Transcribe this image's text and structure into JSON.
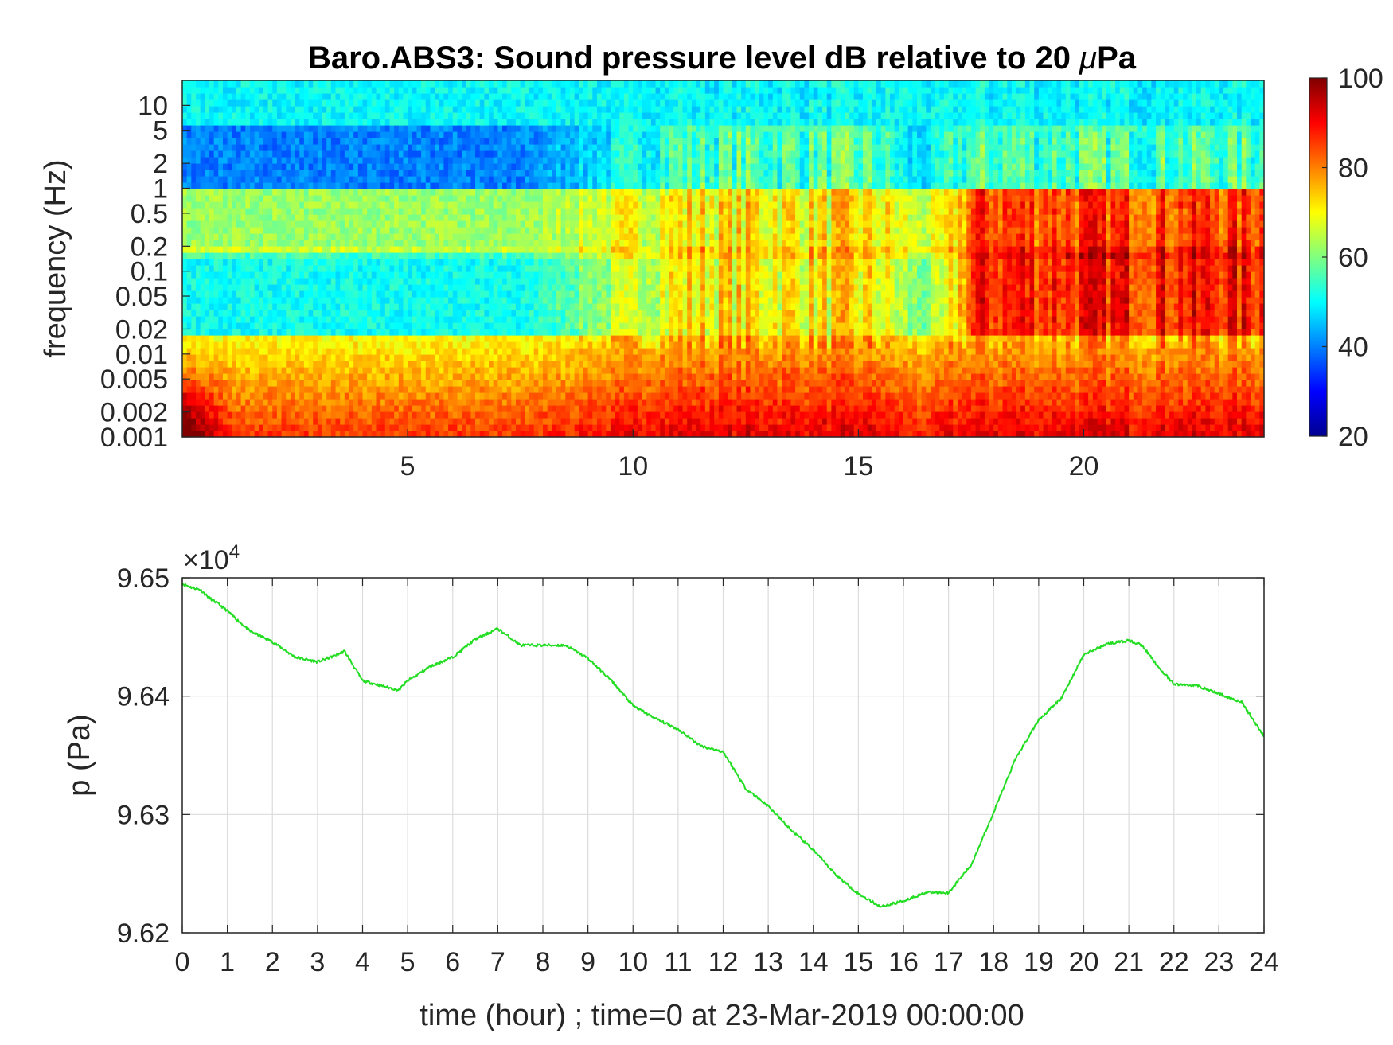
{
  "chart_data": [
    {
      "type": "heatmap",
      "title_prefix": "Baro.ABS3: Sound pressure level dB relative to 20 ",
      "title_mu": "μ",
      "title_suffix": "Pa",
      "ylabel": "frequency (Hz)",
      "yscale": "log",
      "ylim": [
        0.001,
        20
      ],
      "yticks": [
        0.001,
        0.002,
        0.005,
        0.01,
        0.02,
        0.05,
        0.1,
        0.2,
        0.5,
        1,
        2,
        5,
        10
      ],
      "yticklabels": [
        "0.001",
        "0.002",
        "0.005",
        "0.01",
        "0.02",
        "0.05",
        "0.1",
        "0.2",
        "0.5",
        "1",
        "2",
        "5",
        "10"
      ],
      "xlim": [
        0,
        24
      ],
      "xticks": [
        5,
        10,
        15,
        20
      ],
      "xticklabels": [
        "5",
        "10",
        "15",
        "20"
      ],
      "colormap": "jet",
      "clim": [
        20,
        100
      ],
      "colorbar_ticks": [
        20,
        40,
        60,
        80,
        100
      ],
      "colorbar_ticklabels": [
        "20",
        "40",
        "60",
        "80",
        "100"
      ],
      "level_summary": [
        {
          "band": "above 5 Hz",
          "level_db": 50
        },
        {
          "band": "1-5 Hz",
          "level_db_hours_0_8": 40,
          "level_db_hours_10_24": 55
        },
        {
          "band": "0.1-0.5 Hz",
          "level_db_hours_0_8": 62,
          "level_db_hours_17_24": 85
        },
        {
          "band": "0.01-0.1 Hz",
          "level_db_hours_0_7": 50,
          "level_db_hours_17_24": 88
        },
        {
          "band": "below 0.005 Hz",
          "level_db": 85
        }
      ]
    },
    {
      "type": "line",
      "ylabel": "p (Pa)",
      "xlabel": "time (hour) ; time=0 at 23-Mar-2019 00:00:00",
      "exponent_label": "×10",
      "exponent_power": "4",
      "xlim": [
        0,
        24
      ],
      "ylim": [
        96200,
        96500
      ],
      "xticks": [
        0,
        1,
        2,
        3,
        4,
        5,
        6,
        7,
        8,
        9,
        10,
        11,
        12,
        13,
        14,
        15,
        16,
        17,
        18,
        19,
        20,
        21,
        22,
        23,
        24
      ],
      "xticklabels": [
        "0",
        "1",
        "2",
        "3",
        "4",
        "5",
        "6",
        "7",
        "8",
        "9",
        "10",
        "11",
        "12",
        "13",
        "14",
        "15",
        "16",
        "17",
        "18",
        "19",
        "20",
        "21",
        "22",
        "23",
        "24"
      ],
      "yticks": [
        96200,
        96300,
        96400,
        96500
      ],
      "yticklabels": [
        "9.62",
        "9.63",
        "9.64",
        "9.65"
      ],
      "grid": true,
      "line_color": "#22dd22",
      "series": [
        {
          "x": [
            0,
            0.2,
            0.4,
            0.6,
            0.8,
            1.0,
            1.5,
            2.0,
            2.5,
            3.0,
            3.3,
            3.6,
            4.0,
            4.5,
            4.8,
            5.0,
            5.5,
            6.0,
            6.5,
            7.0,
            7.5,
            8.0,
            8.5,
            9.0,
            9.5,
            10.0,
            10.5,
            11.0,
            11.5,
            12.0,
            12.5,
            13.0,
            13.5,
            14.0,
            14.5,
            15.0,
            15.5,
            16.0,
            16.5,
            17.0,
            17.5,
            18.0,
            18.5,
            19.0,
            19.5,
            20.0,
            20.5,
            21.0,
            21.3,
            21.6,
            22.0,
            22.5,
            23.0,
            23.5,
            24.0
          ],
          "y": [
            96495,
            96492,
            96490,
            96483,
            96478,
            96472,
            96455,
            96446,
            96433,
            96429,
            96433,
            96438,
            96413,
            96408,
            96405,
            96413,
            96425,
            96433,
            96448,
            96457,
            96443,
            96443,
            96443,
            96432,
            96414,
            96392,
            96381,
            96372,
            96358,
            96353,
            96322,
            96307,
            96287,
            96270,
            96249,
            96233,
            96222,
            96227,
            96234,
            96234,
            96257,
            96302,
            96348,
            96380,
            96398,
            96435,
            96444,
            96447,
            96443,
            96427,
            96410,
            96409,
            96402,
            96395,
            96366
          ]
        }
      ]
    }
  ]
}
